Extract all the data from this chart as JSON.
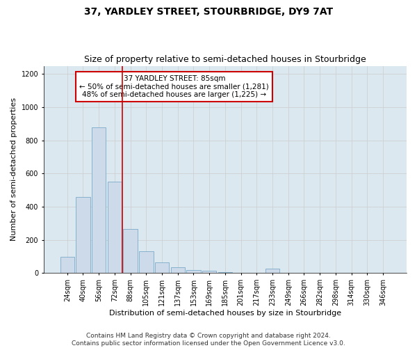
{
  "title": "37, YARDLEY STREET, STOURBRIDGE, DY9 7AT",
  "subtitle": "Size of property relative to semi-detached houses in Stourbridge",
  "xlabel": "Distribution of semi-detached houses by size in Stourbridge",
  "ylabel": "Number of semi-detached properties",
  "footnote1": "Contains HM Land Registry data © Crown copyright and database right 2024.",
  "footnote2": "Contains public sector information licensed under the Open Government Licence v3.0.",
  "annotation_line1": "37 YARDLEY STREET: 85sqm",
  "annotation_line2": "← 50% of semi-detached houses are smaller (1,281)",
  "annotation_line3": "48% of semi-detached houses are larger (1,225) →",
  "bar_categories": [
    "24sqm",
    "40sqm",
    "56sqm",
    "72sqm",
    "88sqm",
    "105sqm",
    "121sqm",
    "137sqm",
    "153sqm",
    "169sqm",
    "185sqm",
    "201sqm",
    "217sqm",
    "233sqm",
    "249sqm",
    "266sqm",
    "282sqm",
    "298sqm",
    "314sqm",
    "330sqm",
    "346sqm"
  ],
  "bar_values": [
    100,
    460,
    880,
    550,
    265,
    130,
    65,
    35,
    20,
    15,
    5,
    3,
    2,
    25,
    2,
    1,
    1,
    0,
    0,
    0,
    0
  ],
  "bar_color": "#ccdaea",
  "bar_edge_color": "#7aaac8",
  "red_line_bin_index": 3.5,
  "ylim": [
    0,
    1250
  ],
  "yticks": [
    0,
    200,
    400,
    600,
    800,
    1000,
    1200
  ],
  "grid_color": "#cccccc",
  "bg_color": "#dce8f0",
  "annotation_box_color": "#ffffff",
  "annotation_border_color": "#cc0000",
  "red_line_color": "#cc0000",
  "title_fontsize": 10,
  "subtitle_fontsize": 9,
  "axis_label_fontsize": 8,
  "tick_fontsize": 7,
  "annotation_fontsize": 7.5,
  "footnote_fontsize": 6.5
}
